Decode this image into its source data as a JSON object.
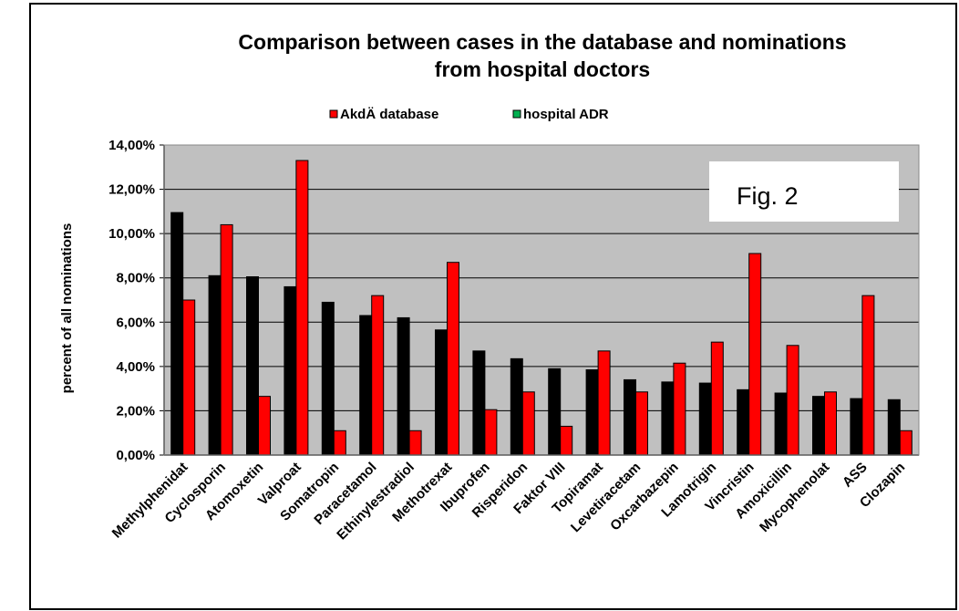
{
  "chart_data": {
    "type": "bar",
    "title": [
      "Comparison between cases in the database and nominations",
      "from hospital doctors"
    ],
    "y_label": "percent of all nominations",
    "annotation": "Fig. 2",
    "categories": [
      "Methylphenidat",
      "Cyclosporin",
      "Atomoxetin",
      "Valproat",
      "Somatropin",
      "Paracetamol",
      "Ethinylestradiol",
      "Methotrexat",
      "Ibuprofen",
      "Risperidon",
      "Faktor VIII",
      "Topiramat",
      "Levetiracetam",
      "Oxcarbazepin",
      "Lamotrigin",
      "Vincristin",
      "Amoxicillin",
      "Mycophenolat",
      "ASS",
      "Clozapin"
    ],
    "series": [
      {
        "name": "AkdÄ database",
        "color": "#ff0000",
        "legend_color": "#ff0000",
        "values": [
          7.0,
          10.4,
          2.65,
          13.3,
          1.1,
          7.2,
          1.1,
          8.7,
          2.05,
          2.85,
          1.3,
          4.7,
          2.85,
          4.15,
          5.1,
          9.1,
          4.95,
          2.85,
          7.2,
          1.1
        ]
      },
      {
        "name": "hospital ADR",
        "color": "#000000",
        "legend_color": "#00b050",
        "values": [
          10.95,
          8.1,
          8.05,
          7.6,
          6.9,
          6.3,
          6.2,
          5.65,
          4.7,
          4.35,
          3.9,
          3.85,
          3.4,
          3.3,
          3.25,
          2.95,
          2.8,
          2.65,
          2.55,
          2.5
        ]
      }
    ],
    "ylim": [
      0,
      14
    ],
    "yticks": [
      {
        "value": 0,
        "label": "0,00%"
      },
      {
        "value": 2,
        "label": "2,00%"
      },
      {
        "value": 4,
        "label": "4,00%"
      },
      {
        "value": 6,
        "label": "6,00%"
      },
      {
        "value": 8,
        "label": "8,00%"
      },
      {
        "value": 10,
        "label": "10,00%"
      },
      {
        "value": 12,
        "label": "12,00%"
      },
      {
        "value": 14,
        "label": "14,00%"
      }
    ],
    "grid": true,
    "plot_background": "#c0c0c0"
  }
}
